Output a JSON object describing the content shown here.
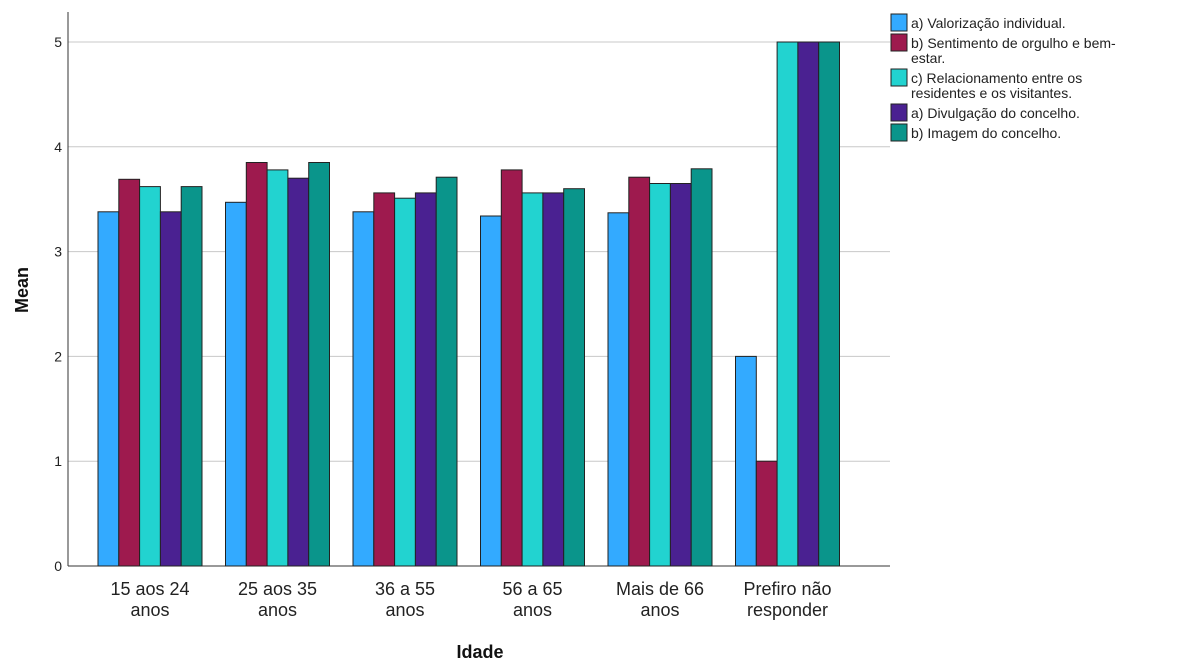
{
  "chart_data": {
    "type": "bar",
    "xlabel": "Idade",
    "ylabel": "Mean",
    "ylim": [
      0,
      5.3
    ],
    "yticks": [
      0,
      1,
      2,
      3,
      4,
      5
    ],
    "grid": true,
    "legend_position": "top-right",
    "categories": [
      [
        "15 aos 24",
        "anos"
      ],
      [
        "25 aos 35",
        "anos"
      ],
      [
        "36 a 55",
        "anos"
      ],
      [
        "56 a 65",
        "anos"
      ],
      [
        "Mais de 66",
        "anos"
      ],
      [
        "Prefiro não",
        "responder"
      ]
    ],
    "series": [
      {
        "name": [
          "a) Valorização individual."
        ],
        "color": "#33aaff",
        "values": [
          3.38,
          3.47,
          3.38,
          3.34,
          3.37,
          2.0
        ]
      },
      {
        "name": [
          "b) Sentimento de orgulho e bem-",
          "estar."
        ],
        "color": "#9e1a4e",
        "values": [
          3.69,
          3.85,
          3.56,
          3.78,
          3.71,
          1.0
        ]
      },
      {
        "name": [
          "c) Relacionamento entre os",
          "residentes e os visitantes."
        ],
        "color": "#22d3d0",
        "values": [
          3.62,
          3.78,
          3.51,
          3.56,
          3.65,
          5.0
        ]
      },
      {
        "name": [
          "a) Divulgação do concelho."
        ],
        "color": "#4a2191",
        "values": [
          3.38,
          3.7,
          3.56,
          3.56,
          3.65,
          5.0
        ]
      },
      {
        "name": [
          "b) Imagem do concelho."
        ],
        "color": "#0a958b",
        "values": [
          3.62,
          3.85,
          3.71,
          3.6,
          3.79,
          5.0
        ]
      }
    ]
  }
}
